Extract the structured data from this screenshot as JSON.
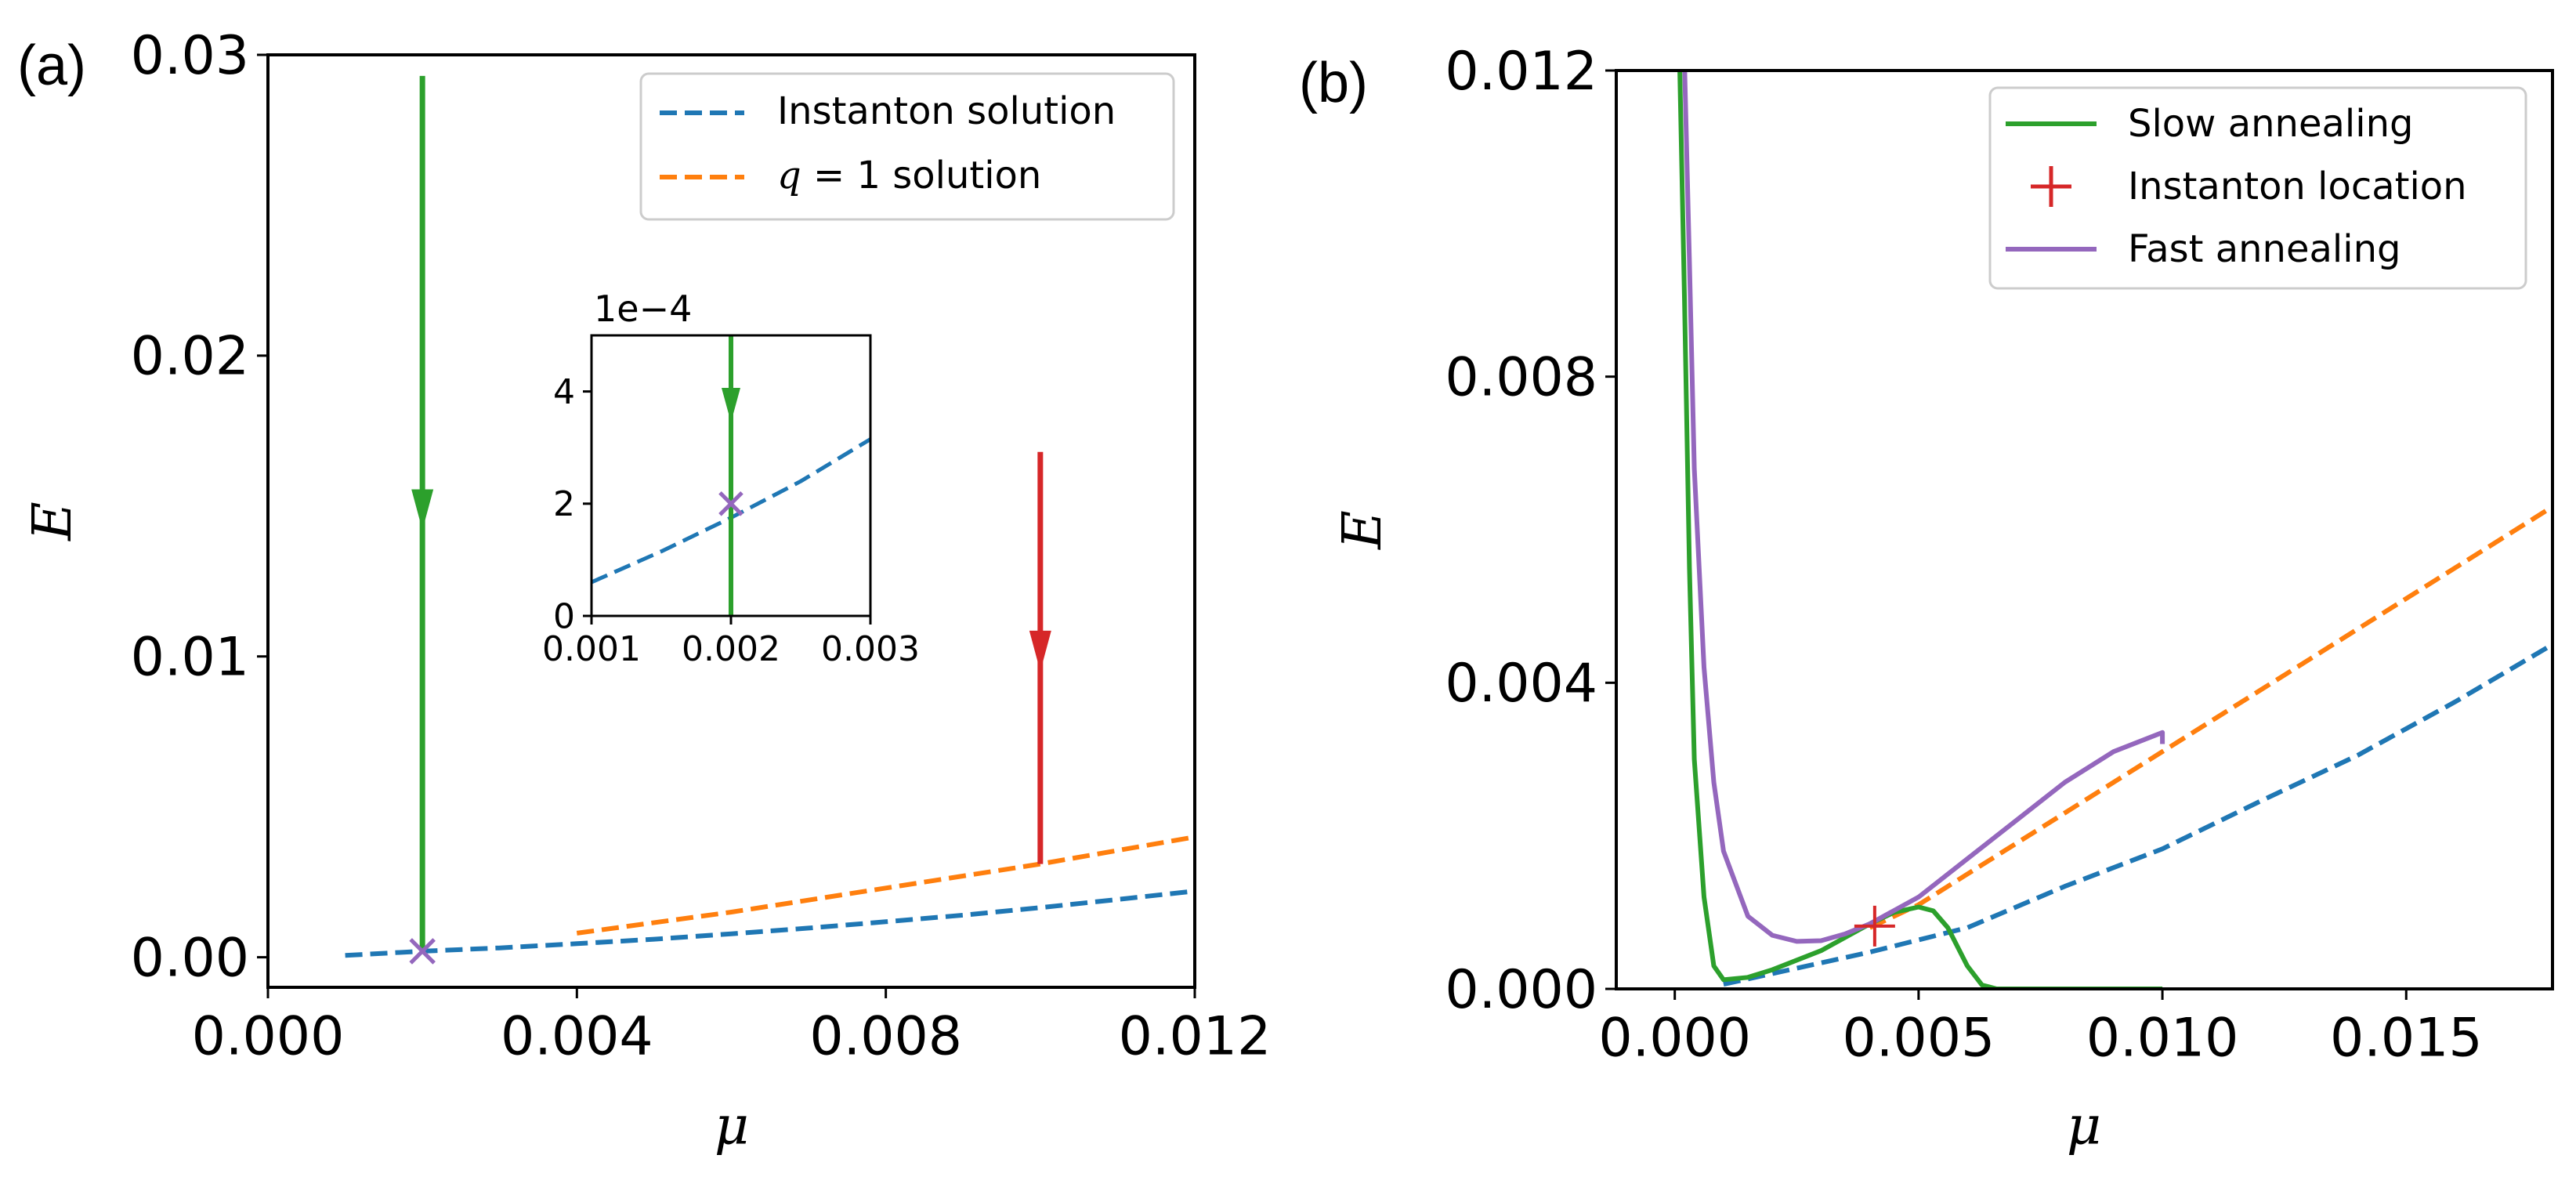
{
  "figure": {
    "palette": {
      "blue": "#1f77b4",
      "orange": "#ff7f0e",
      "green": "#2ca02c",
      "red": "#d62728",
      "purple": "#9467bd"
    }
  },
  "chart_data": [
    {
      "id": "a",
      "panel_label": "(a)",
      "type": "line",
      "xlabel": "μ",
      "ylabel": "E",
      "xlim": [
        0.0,
        0.012
      ],
      "ylim": [
        -0.001,
        0.03
      ],
      "xticks": [
        0.0,
        0.004,
        0.008,
        0.012
      ],
      "xtick_labels": [
        "0.000",
        "0.004",
        "0.008",
        "0.012"
      ],
      "yticks": [
        0.0,
        0.01,
        0.02,
        0.03
      ],
      "ytick_labels": [
        "0.00",
        "0.01",
        "0.02",
        "0.03"
      ],
      "legend": {
        "position": "top-right",
        "entries": [
          {
            "label": "Instanton solution",
            "color": "#1f77b4",
            "style": "dashed"
          },
          {
            "label_math": "q",
            "label_rest": " = 1 solution",
            "color": "#ff7f0e",
            "style": "dashed"
          }
        ]
      },
      "series": [
        {
          "name": "Instanton solution",
          "color": "#1f77b4",
          "style": "dashed",
          "x": [
            0.001,
            0.002,
            0.003,
            0.004,
            0.005,
            0.006,
            0.007,
            0.008,
            0.009,
            0.01,
            0.011,
            0.012
          ],
          "y": [
            6e-05,
            0.0002,
            0.00031,
            0.00045,
            0.0006,
            0.00078,
            0.00097,
            0.00118,
            0.0014,
            0.00165,
            0.00192,
            0.0022
          ]
        },
        {
          "name": "q = 1 solution",
          "color": "#ff7f0e",
          "style": "dashed",
          "x": [
            0.004,
            0.006,
            0.008,
            0.01,
            0.012
          ],
          "y": [
            0.0008,
            0.0015,
            0.0023,
            0.0031,
            0.004
          ]
        }
      ],
      "arrows": [
        {
          "name": "green",
          "color": "#2ca02c",
          "x": 0.002,
          "y_start": 0.0293,
          "y_end": 0.0002,
          "y_head": 0.0142
        },
        {
          "name": "red",
          "color": "#d62728",
          "x": 0.01,
          "y_start": 0.0168,
          "y_end": 0.0031,
          "y_head": 0.0095
        }
      ],
      "markers": [
        {
          "name": "instanton-cross",
          "shape": "x",
          "color": "#9467bd",
          "x": 0.002,
          "y": 0.0002
        }
      ],
      "inset": {
        "type": "line",
        "offset_label": "1e−4",
        "xlim": [
          0.001,
          0.003
        ],
        "ylim": [
          0,
          5
        ],
        "xticks": [
          0.001,
          0.002,
          0.003
        ],
        "xtick_labels": [
          "0.001",
          "0.002",
          "0.003"
        ],
        "yticks": [
          0,
          2,
          4
        ],
        "ytick_labels": [
          "0",
          "2",
          "4"
        ],
        "series": [
          {
            "name": "Instanton solution",
            "color": "#1f77b4",
            "style": "dashed",
            "x": [
              0.001,
              0.0015,
              0.002,
              0.0025,
              0.003
            ],
            "y": [
              0.6,
              1.15,
              1.75,
              2.4,
              3.15
            ]
          }
        ],
        "arrows": [
          {
            "name": "green",
            "color": "#2ca02c",
            "x": 0.002,
            "y_start": 5.0,
            "y_end": 0.0,
            "y_head": 3.45
          }
        ],
        "markers": [
          {
            "name": "instanton-cross",
            "shape": "x",
            "color": "#9467bd",
            "x": 0.002,
            "y": 2.0
          }
        ]
      }
    },
    {
      "id": "b",
      "panel_label": "(b)",
      "type": "line",
      "xlabel": "μ",
      "ylabel": "E",
      "xlim": [
        -0.0012,
        0.018
      ],
      "ylim": [
        0.0,
        0.012
      ],
      "xticks": [
        0.0,
        0.005,
        0.01,
        0.015
      ],
      "xtick_labels": [
        "0.000",
        "0.005",
        "0.010",
        "0.015"
      ],
      "yticks": [
        0.0,
        0.004,
        0.008,
        0.012
      ],
      "ytick_labels": [
        "0.000",
        "0.004",
        "0.008",
        "0.012"
      ],
      "legend": {
        "position": "top-right",
        "entries": [
          {
            "label": "Slow annealing",
            "color": "#2ca02c",
            "style": "solid"
          },
          {
            "label": "Instanton location",
            "color": "#d62728",
            "style": "plus-marker"
          },
          {
            "label": "Fast annealing",
            "color": "#9467bd",
            "style": "solid"
          }
        ]
      },
      "series": [
        {
          "name": "Instanton solution",
          "color": "#1f77b4",
          "style": "dashed",
          "x": [
            0.001,
            0.002,
            0.004,
            0.006,
            0.008,
            0.01,
            0.012,
            0.014,
            0.016,
            0.018
          ],
          "y": [
            6e-05,
            0.0002,
            0.00048,
            0.0008,
            0.00134,
            0.00183,
            0.00245,
            0.00305,
            0.00375,
            0.0045
          ]
        },
        {
          "name": "q = 1 solution",
          "color": "#ff7f0e",
          "style": "dashed",
          "x": [
            0.004,
            0.005,
            0.006,
            0.008,
            0.01,
            0.012,
            0.014,
            0.016,
            0.018
          ],
          "y": [
            0.0008,
            0.0011,
            0.0015,
            0.0023,
            0.0031,
            0.0039,
            0.0047,
            0.0055,
            0.0063
          ]
        },
        {
          "name": "Slow annealing",
          "color": "#2ca02c",
          "style": "solid",
          "x": [
            0.0001,
            0.0002,
            0.0003,
            0.0004,
            0.0006,
            0.0008,
            0.001,
            0.0015,
            0.002,
            0.003,
            0.004,
            0.0045,
            0.005,
            0.0053,
            0.0056,
            0.006,
            0.0063,
            0.0066,
            0.007,
            0.008,
            0.009,
            0.01
          ],
          "y": [
            0.0121,
            0.009,
            0.0055,
            0.003,
            0.0012,
            0.0003,
            0.00012,
            0.00015,
            0.00025,
            0.0005,
            0.00085,
            0.001,
            0.00107,
            0.00102,
            0.0008,
            0.0003,
            5e-05,
            0.0,
            0.0,
            0.0,
            0.0,
            0.0
          ]
        },
        {
          "name": "Fast annealing",
          "color": "#9467bd",
          "style": "solid",
          "x": [
            0.0002,
            0.0003,
            0.0004,
            0.0006,
            0.0008,
            0.001,
            0.0015,
            0.002,
            0.0025,
            0.003,
            0.0035,
            0.004,
            0.005,
            0.006,
            0.007,
            0.008,
            0.009,
            0.01,
            0.01
          ],
          "y": [
            0.0121,
            0.0095,
            0.0068,
            0.0042,
            0.0027,
            0.0018,
            0.00095,
            0.0007,
            0.00062,
            0.00063,
            0.00072,
            0.00085,
            0.0012,
            0.0017,
            0.0022,
            0.0027,
            0.0031,
            0.00335,
            0.0032
          ]
        }
      ],
      "markers": [
        {
          "name": "instanton-location",
          "shape": "+",
          "color": "#d62728",
          "x": 0.0041,
          "y": 0.00082
        }
      ]
    }
  ]
}
